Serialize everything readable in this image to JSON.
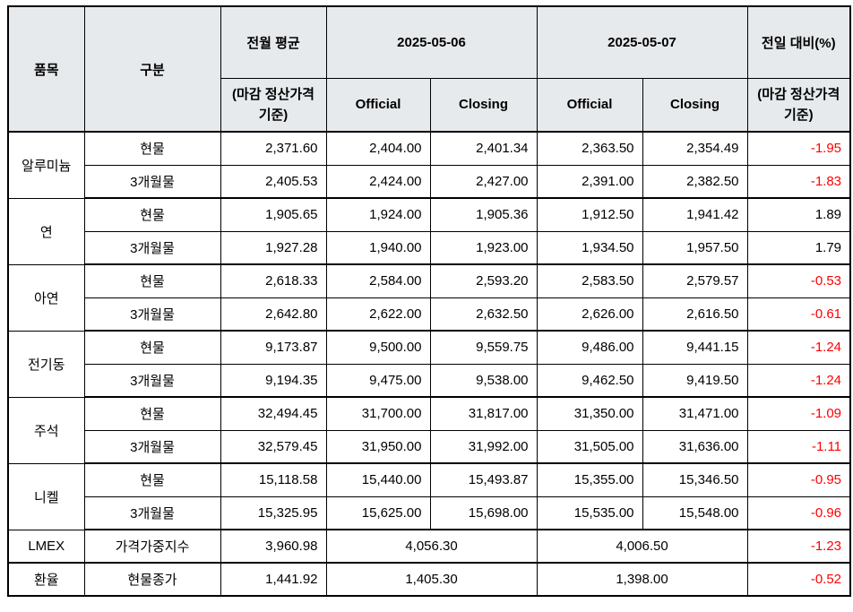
{
  "table": {
    "header": {
      "item": "품목",
      "category": "구분",
      "prev_month_avg": "전월 평균",
      "prev_month_avg_sub": "(마감 정산가격 기준)",
      "date1": "2025-05-06",
      "date2": "2025-05-07",
      "official": "Official",
      "closing": "Closing",
      "dod": "전일 대비(%)",
      "dod_sub": "(마감 정산가격 기준)"
    },
    "colors": {
      "header_bg": "#e7eaec",
      "negative_text": "#ff0000",
      "positive_text": "#000000",
      "border": "#000000"
    },
    "groups": [
      {
        "item": "알루미늄",
        "rows": [
          {
            "category": "현물",
            "prev_avg": "2,371.60",
            "d1_official": "2,404.00",
            "d1_closing": "2,401.34",
            "d2_official": "2,363.50",
            "d2_closing": "2,354.49",
            "dod": "-1.95"
          },
          {
            "category": "3개월물",
            "prev_avg": "2,405.53",
            "d1_official": "2,424.00",
            "d1_closing": "2,427.00",
            "d2_official": "2,391.00",
            "d2_closing": "2,382.50",
            "dod": "-1.83"
          }
        ]
      },
      {
        "item": "연",
        "rows": [
          {
            "category": "현물",
            "prev_avg": "1,905.65",
            "d1_official": "1,924.00",
            "d1_closing": "1,905.36",
            "d2_official": "1,912.50",
            "d2_closing": "1,941.42",
            "dod": "1.89"
          },
          {
            "category": "3개월물",
            "prev_avg": "1,927.28",
            "d1_official": "1,940.00",
            "d1_closing": "1,923.00",
            "d2_official": "1,934.50",
            "d2_closing": "1,957.50",
            "dod": "1.79"
          }
        ]
      },
      {
        "item": "아연",
        "rows": [
          {
            "category": "현물",
            "prev_avg": "2,618.33",
            "d1_official": "2,584.00",
            "d1_closing": "2,593.20",
            "d2_official": "2,583.50",
            "d2_closing": "2,579.57",
            "dod": "-0.53"
          },
          {
            "category": "3개월물",
            "prev_avg": "2,642.80",
            "d1_official": "2,622.00",
            "d1_closing": "2,632.50",
            "d2_official": "2,626.00",
            "d2_closing": "2,616.50",
            "dod": "-0.61"
          }
        ]
      },
      {
        "item": "전기동",
        "rows": [
          {
            "category": "현물",
            "prev_avg": "9,173.87",
            "d1_official": "9,500.00",
            "d1_closing": "9,559.75",
            "d2_official": "9,486.00",
            "d2_closing": "9,441.15",
            "dod": "-1.24"
          },
          {
            "category": "3개월물",
            "prev_avg": "9,194.35",
            "d1_official": "9,475.00",
            "d1_closing": "9,538.00",
            "d2_official": "9,462.50",
            "d2_closing": "9,419.50",
            "dod": "-1.24"
          }
        ]
      },
      {
        "item": "주석",
        "rows": [
          {
            "category": "현물",
            "prev_avg": "32,494.45",
            "d1_official": "31,700.00",
            "d1_closing": "31,817.00",
            "d2_official": "31,350.00",
            "d2_closing": "31,471.00",
            "dod": "-1.09"
          },
          {
            "category": "3개월물",
            "prev_avg": "32,579.45",
            "d1_official": "31,950.00",
            "d1_closing": "31,992.00",
            "d2_official": "31,505.00",
            "d2_closing": "31,636.00",
            "dod": "-1.11"
          }
        ]
      },
      {
        "item": "니켈",
        "rows": [
          {
            "category": "현물",
            "prev_avg": "15,118.58",
            "d1_official": "15,440.00",
            "d1_closing": "15,493.87",
            "d2_official": "15,355.00",
            "d2_closing": "15,346.50",
            "dod": "-0.95"
          },
          {
            "category": "3개월물",
            "prev_avg": "15,325.95",
            "d1_official": "15,625.00",
            "d1_closing": "15,698.00",
            "d2_official": "15,535.00",
            "d2_closing": "15,548.00",
            "dod": "-0.96"
          }
        ]
      },
      {
        "item": "LMEX",
        "rows": [
          {
            "category": "가격가중지수",
            "prev_avg": "3,960.98",
            "d1_merged": "4,056.30",
            "d2_merged": "4,006.50",
            "dod": "-1.23"
          }
        ]
      },
      {
        "item": "환율",
        "rows": [
          {
            "category": "현물종가",
            "prev_avg": "1,441.92",
            "d1_merged": "1,405.30",
            "d2_merged": "1,398.00",
            "dod": "-0.52"
          }
        ]
      }
    ]
  }
}
